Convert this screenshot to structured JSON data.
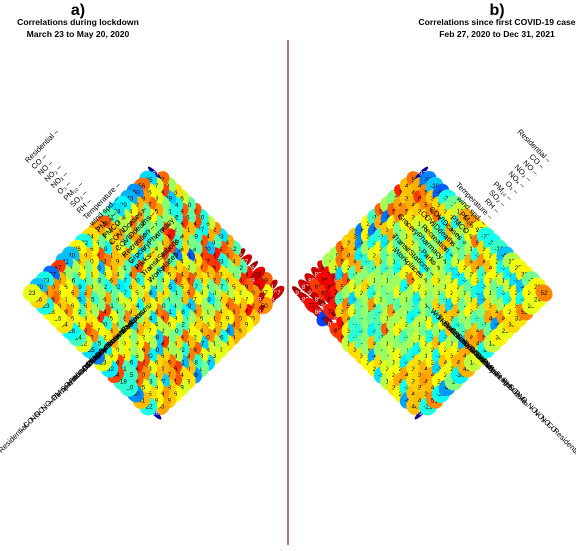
{
  "chart_data": [
    {
      "type": "heatmap",
      "panel_letter": "a)",
      "title_line1": "Correlations during lockdown",
      "title_line2": "March 23 to May 20, 2020",
      "variables": [
        "Workplaces",
        "TransitStations",
        "Parks",
        "GroceryPharmacy",
        "Recreation",
        "COVIDdeaths",
        "COVIDcases",
        "PMCO",
        "PM2.5",
        "wind spd.",
        "Temperature",
        "RH",
        "SO2",
        "PM10",
        "O3",
        "NOx",
        "NO2",
        "NO",
        "CO",
        "Residential"
      ],
      "variable_labels": [
        "Workplaces",
        "TransitStations",
        "Parks",
        "GroceryPharmacy",
        "Recreation",
        "COVIDdeaths",
        "COVIDcases",
        "PMCO",
        "PM₂.₅",
        "wind spd.",
        "Temperature",
        "RH",
        "SO₂",
        "PM₁₀",
        "O₃",
        "NOₓ",
        "NO₂",
        "NO",
        "CO",
        "Residential"
      ],
      "value_scale": "correlation x 100",
      "color_range": [
        -100,
        100
      ],
      "values": [
        [
          87,
          91,
          59,
          83,
          96,
          87,
          92,
          -12,
          44,
          -33,
          52,
          16,
          -20,
          62,
          -10,
          16,
          35,
          8,
          57,
          -97
        ],
        [
          88,
          27,
          81,
          89,
          73,
          -12,
          44,
          53,
          61,
          -9,
          44,
          -27,
          64,
          -6,
          59,
          -24,
          -39,
          66,
          17,
          -35
        ],
        [
          50,
          89,
          50,
          59,
          70,
          -1,
          2,
          -23,
          75,
          -40,
          62,
          -19,
          41,
          66,
          -22,
          -21,
          1,
          23,
          26,
          56
        ],
        [
          93,
          52,
          27,
          22,
          35,
          36,
          33,
          68,
          67,
          65,
          -6,
          -1,
          39,
          -2,
          11,
          5,
          45,
          57,
          48,
          -50
        ],
        [
          40,
          77,
          41,
          29,
          12,
          -17,
          52,
          41,
          57,
          33,
          -61,
          36,
          -15,
          74,
          64,
          -5,
          28,
          -6,
          42,
          -43
        ],
        [
          29,
          40,
          53,
          56,
          37,
          10,
          -3,
          33,
          39,
          12,
          24,
          -52,
          63,
          41,
          -9,
          8,
          -4,
          47,
          24,
          -29
        ],
        [
          38,
          53,
          29,
          34,
          -1,
          -33,
          19,
          -17,
          62,
          44,
          36,
          -7,
          66,
          14,
          -3,
          -25,
          0,
          54,
          16,
          -34
        ],
        [
          43,
          -46,
          32,
          51,
          11,
          6,
          27,
          55,
          35,
          59,
          36,
          54,
          23,
          35,
          -14,
          51,
          45,
          11,
          12,
          -11
        ],
        [
          33,
          -26,
          44,
          25,
          16,
          48,
          -39,
          41,
          -11,
          -35,
          24,
          -17,
          16,
          22,
          -32,
          20,
          -12,
          47,
          42,
          60
        ],
        [
          22,
          11,
          50,
          44,
          37,
          6,
          -28,
          -4,
          -6,
          33,
          -6,
          13,
          32,
          64,
          -24,
          45,
          27,
          38,
          15,
          47
        ],
        [
          23,
          18,
          -37,
          22,
          30,
          -12,
          29,
          -31,
          -10,
          34,
          -38,
          26,
          -20,
          54,
          -11,
          39,
          41,
          -29,
          -5,
          34
        ],
        [
          -37,
          23,
          59,
          41,
          58,
          -10,
          26,
          59,
          53,
          23,
          40,
          15,
          36,
          -27,
          14,
          41,
          53,
          62,
          26,
          -22
        ],
        [
          -1,
          -18,
          53,
          -22,
          35,
          0,
          12,
          14,
          -34,
          19,
          -24,
          25,
          -27,
          -32,
          46,
          28,
          -43,
          30,
          40,
          26
        ],
        [
          -48,
          40,
          -41,
          13,
          8,
          68,
          -38,
          27,
          37,
          7,
          39,
          20,
          18,
          -7,
          -22,
          -13,
          31,
          0,
          36,
          -40
        ],
        [
          33,
          34,
          66,
          55,
          36,
          -40,
          9,
          22,
          43,
          -36,
          52,
          -4,
          -11,
          46,
          7,
          13,
          -6,
          29,
          8,
          -41
        ],
        [
          19,
          61,
          47,
          42,
          36,
          -30,
          56,
          29,
          0,
          31,
          -5,
          25,
          64,
          0,
          -15,
          45,
          -29,
          -16,
          6,
          67
        ],
        [
          26,
          38,
          -37,
          41,
          23,
          62,
          16,
          6,
          30,
          14,
          43,
          -20,
          69,
          8,
          36,
          -35,
          45,
          26,
          42,
          -57
        ],
        [
          38,
          48,
          29,
          -13,
          50,
          68,
          -26,
          31,
          20,
          45,
          32,
          27,
          31,
          33,
          -12,
          26,
          31,
          28,
          50,
          -23
        ],
        [
          45,
          28,
          35,
          25,
          58,
          -15,
          -11,
          66,
          29,
          -31,
          -15,
          52,
          62,
          31,
          26,
          49,
          38,
          58,
          48,
          -40
        ],
        [
          -96,
          -22,
          41,
          -50,
          -20,
          -18,
          64,
          -32,
          23,
          -53,
          -35,
          22,
          -14,
          -28,
          34,
          25,
          28,
          -23,
          36,
          23
        ]
      ]
    },
    {
      "type": "heatmap",
      "panel_letter": "b)",
      "title_line1": "Correlations since first COVID-19 case",
      "title_line2": "Feb 27, 2020 to Dec 31, 2021",
      "variables": [
        "Workplaces",
        "TransitStations",
        "Parks",
        "GroceryPharmacy",
        "Recreation",
        "COVIDdeaths",
        "COVIDcases",
        "PMCO",
        "PM2.5",
        "wind spd.",
        "Temperature",
        "RH",
        "SO2",
        "PM10",
        "O3",
        "NOx",
        "NO2",
        "NO",
        "CO",
        "Residential"
      ],
      "variable_labels": [
        "Workplaces",
        "TransitStations",
        "Parks",
        "GroceryPharmacy",
        "Recreation",
        "COVIDdeaths",
        "COVIDcases",
        "PMCO",
        "PM₂.₅",
        "wind spd.",
        "Temperature",
        "RH",
        "SO₂",
        "PM₁₀",
        "O₃",
        "NOₓ",
        "NO₂",
        "NO",
        "CO",
        "Residential"
      ],
      "value_scale": "correlation x 100",
      "color_range": [
        -100,
        100
      ],
      "values": [
        [
          94,
          87,
          86,
          88,
          83,
          9,
          9,
          58,
          37,
          39,
          -53,
          29,
          -15,
          58,
          9,
          2,
          71,
          40,
          56,
          -97
        ],
        [
          89,
          92,
          66,
          79,
          78,
          19,
          55,
          47,
          41,
          -49,
          30,
          -55,
          44,
          -55,
          59,
          46,
          39,
          41,
          44,
          -53
        ],
        [
          77,
          89,
          69,
          80,
          86,
          -36,
          23,
          46,
          -30,
          8,
          -23,
          -17,
          39,
          25,
          51,
          50,
          43,
          67,
          53,
          -38
        ],
        [
          86,
          96,
          83,
          74,
          53,
          61,
          -11,
          44,
          -19,
          23,
          27,
          -32,
          44,
          -1,
          29,
          34,
          38,
          51,
          39,
          -60
        ],
        [
          -65,
          72,
          73,
          -12,
          7,
          22,
          4,
          2,
          -12,
          36,
          -9,
          22,
          -12,
          10,
          32,
          18,
          34,
          51,
          36,
          -24
        ],
        [
          93,
          97,
          36,
          53,
          -36,
          20,
          36,
          14,
          5,
          -15,
          11,
          -15,
          10,
          33,
          -6,
          10,
          24,
          56,
          35,
          -4
        ],
        [
          68,
          77,
          44,
          23,
          -7,
          9,
          -22,
          5,
          10,
          0,
          -26,
          -4,
          21,
          11,
          -17,
          29,
          -4,
          -28,
          30,
          16
        ],
        [
          67,
          31,
          -15,
          -7,
          5,
          49,
          16,
          -2,
          7,
          7,
          24,
          28,
          3,
          -24,
          -3,
          5,
          -25,
          42,
          -23,
          43
        ],
        [
          16,
          -18,
          -20,
          2,
          -9,
          -15,
          6,
          -5,
          23,
          -24,
          53,
          30,
          -28,
          20,
          4,
          39,
          40,
          13,
          10,
          49
        ],
        [
          35,
          -7,
          2,
          -30,
          -12,
          15,
          48,
          -9,
          10,
          8,
          26,
          17,
          -3,
          15,
          10,
          -27,
          5,
          -13,
          25,
          27
        ],
        [
          34,
          6,
          41,
          -14,
          59,
          8,
          9,
          8,
          -1,
          -30,
          21,
          9,
          32,
          8,
          -20,
          17,
          -6,
          12,
          55,
          -22
        ],
        [
          27,
          -44,
          4,
          11,
          8,
          30,
          21,
          -28,
          -22,
          10,
          1,
          12,
          13,
          18,
          -31,
          27,
          43,
          -21,
          35,
          -24
        ],
        [
          28,
          35,
          5,
          17,
          2,
          -13,
          3,
          13,
          12,
          -9,
          36,
          -13,
          26,
          25,
          -30,
          20,
          45,
          49,
          24,
          -16
        ],
        [
          -34,
          23,
          15,
          27,
          5,
          8,
          17,
          -3,
          25,
          -23,
          40,
          -35,
          30,
          10,
          -6,
          29,
          -16,
          40,
          25,
          -40
        ],
        [
          12,
          26,
          25,
          -31,
          -20,
          -29,
          22,
          -23,
          6,
          27,
          38,
          42,
          -5,
          16,
          -23,
          -31,
          26,
          27,
          -24,
          12
        ],
        [
          33,
          44,
          46,
          33,
          34,
          17,
          20,
          41,
          -31,
          40,
          -21,
          5,
          28,
          34,
          -39,
          19,
          -3,
          18,
          -29,
          25
        ],
        [
          26,
          -24,
          34,
          36,
          43,
          29,
          -26,
          29,
          14,
          2,
          -13,
          6,
          -12,
          1,
          36,
          5,
          -21,
          15,
          -34,
          30
        ],
        [
          -46,
          40,
          38,
          48,
          45,
          -37,
          40,
          32,
          26,
          -41,
          46,
          40,
          -11,
          46,
          40,
          8,
          -27,
          29,
          -40,
          -3
        ],
        [
          40,
          41,
          39,
          42,
          26,
          27,
          23,
          43,
          44,
          45,
          45,
          56,
          -3,
          -47,
          49,
          25,
          30,
          -25,
          29,
          29
        ],
        [
          -97,
          -21,
          51,
          -26,
          -48,
          2,
          -30,
          43,
          14,
          22,
          -24,
          15,
          30,
          23,
          35,
          33,
          52,
          23,
          24,
          52
        ]
      ]
    }
  ]
}
